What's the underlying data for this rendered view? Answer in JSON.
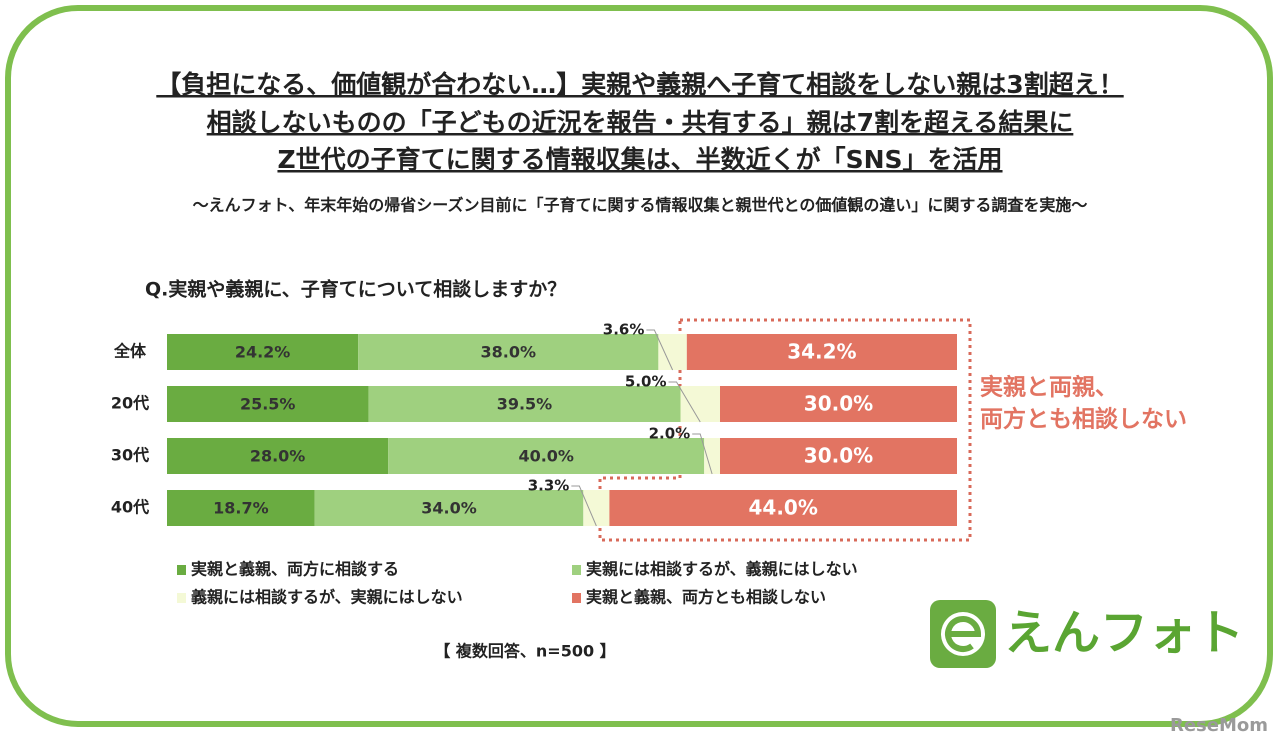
{
  "header": {
    "title_lines": [
      "【負担になる、価値観が合わない…】実親や義親へ子育て相談をしない親は3割超え！",
      "相談しないものの「子どもの近況を報告・共有する」親は7割を超える結果に",
      "Z世代の子育てに関する情報収集は、半数近くが「SNS」を活用"
    ],
    "subtitle": "～えんフォト、年末年始の帰省シーズン目前に「子育てに関する情報収集と親世代との価値観の違い」に関する調査を実施～"
  },
  "chart_data": {
    "type": "bar",
    "orientation": "horizontal",
    "stacked": true,
    "title": "Q.実親や義親に、子育てについて相談しますか？",
    "categories": [
      "全体",
      "20代",
      "30代",
      "40代"
    ],
    "series": [
      {
        "name": "実親と義親、両方に相談する",
        "color": "#6aac41",
        "values": [
          24.2,
          25.5,
          28.0,
          18.7
        ],
        "value_labels": [
          "24.2%",
          "25.5%",
          "28.0%",
          "18.7%"
        ]
      },
      {
        "name": "実親には相談するが、義親にはしない",
        "color": "#9fd07f",
        "values": [
          38.0,
          39.5,
          40.0,
          34.0
        ],
        "value_labels": [
          "38.0%",
          "39.5%",
          "40.0%",
          "34.0%"
        ]
      },
      {
        "name": "義親には相談するが、実親にはしない",
        "color": "#f4f9d6",
        "values": [
          3.6,
          5.0,
          2.0,
          3.3
        ],
        "value_labels": [
          "3.6%",
          "5.0%",
          "2.0%",
          "3.3%"
        ]
      },
      {
        "name": "実親と義親、両方とも相談しない",
        "color": "#e27462",
        "values": [
          34.2,
          30.0,
          30.0,
          44.0
        ],
        "value_labels": [
          "34.2%",
          "30.0%",
          "30.0%",
          "44.0%"
        ]
      }
    ],
    "annotation_lines": [
      "実親と両親、",
      "両方とも相談しない"
    ],
    "note": "【 複数回答、n=500 】"
  },
  "logo": "えんフォト",
  "watermark": "ReseMom"
}
